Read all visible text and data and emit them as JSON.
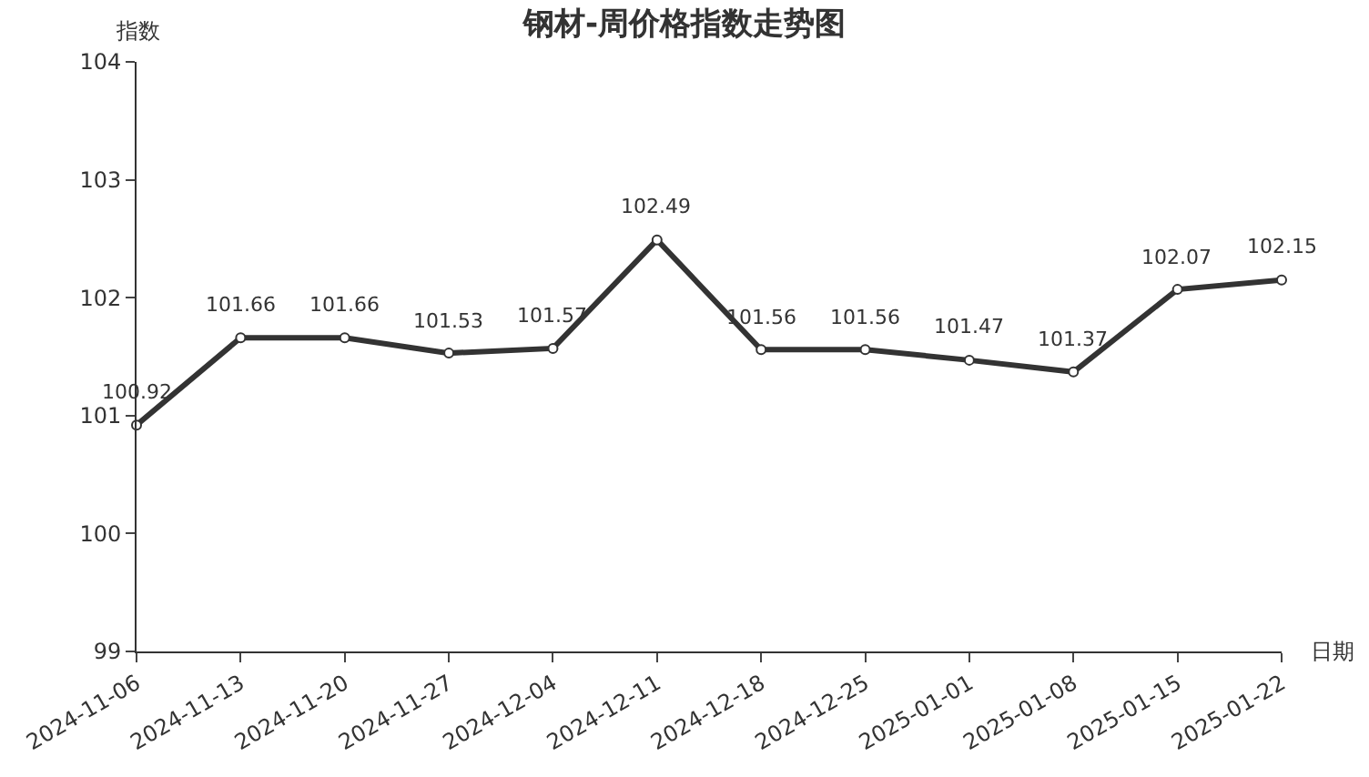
{
  "chart_data": {
    "type": "line",
    "title": "钢材-周价格指数走势图",
    "xlabel": "日期",
    "ylabel": "指数",
    "categories": [
      "2024-11-06",
      "2024-11-13",
      "2024-11-20",
      "2024-11-27",
      "2024-12-04",
      "2024-12-11",
      "2024-12-18",
      "2024-12-25",
      "2025-01-01",
      "2025-01-08",
      "2025-01-15",
      "2025-01-22"
    ],
    "series": [
      {
        "color": "#333333",
        "values": [
          100.92,
          101.66,
          101.66,
          101.53,
          101.57,
          102.49,
          101.56,
          101.56,
          101.47,
          101.37,
          102.07,
          102.15
        ]
      }
    ],
    "ylim": [
      99,
      104
    ],
    "yticks": [
      99,
      100,
      101,
      102,
      103,
      104
    ],
    "legend": false,
    "marker": "circle",
    "line_style": "solid",
    "data_labels": true
  }
}
